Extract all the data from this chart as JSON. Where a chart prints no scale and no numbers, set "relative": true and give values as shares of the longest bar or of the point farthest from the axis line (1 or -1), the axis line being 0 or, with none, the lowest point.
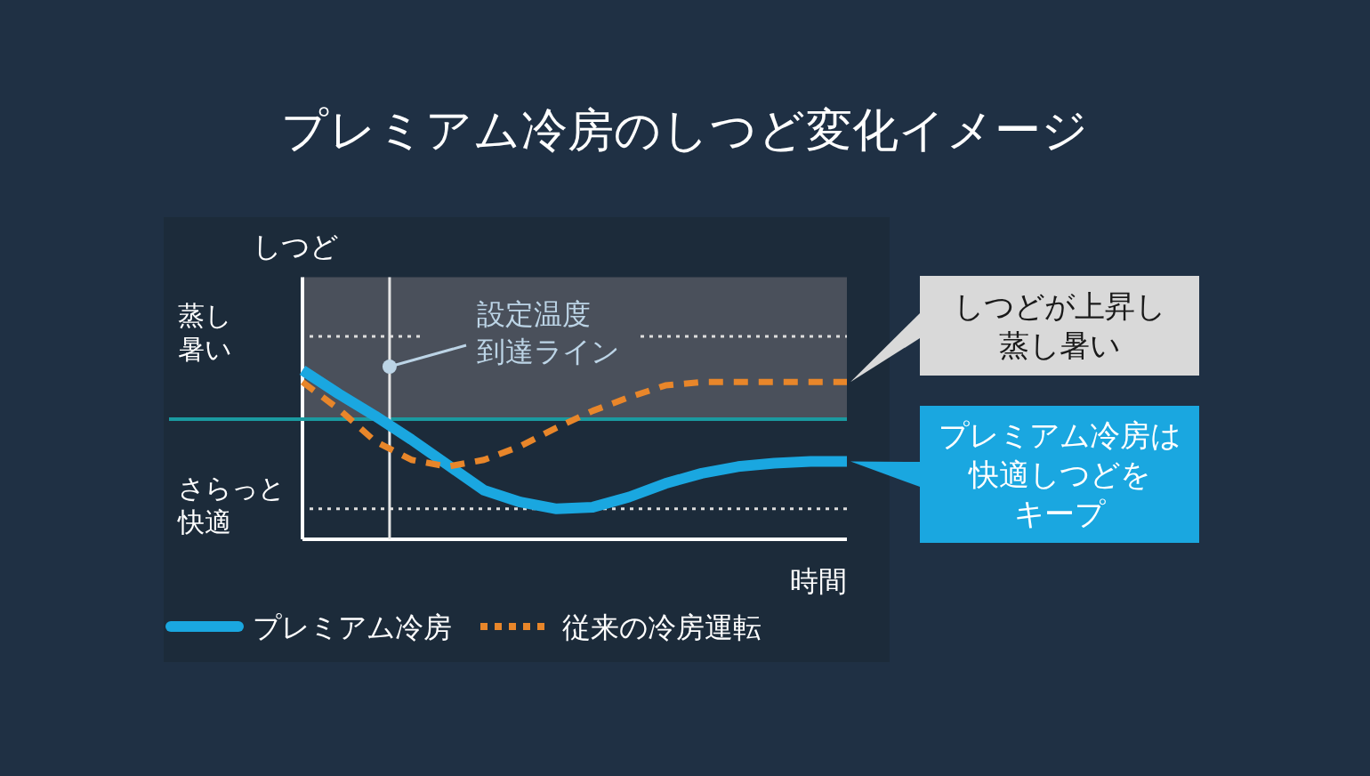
{
  "chart_data": {
    "type": "line",
    "title": "プレミアム冷房のしつど変化イメージ",
    "xlabel": "時間",
    "ylabel": "しつど",
    "relative": true,
    "categories": [
      null,
      null,
      null,
      null,
      null,
      null,
      null,
      null,
      null,
      null,
      null,
      null,
      null,
      null,
      null,
      null
    ],
    "legend": "bottom left",
    "series": [
      {
        "name": "プレミアム冷房",
        "color": "#1aa7e0",
        "line_style": "solid",
        "values": [
          1.0,
          0.86,
          0.73,
          0.59,
          0.44,
          0.29,
          0.22,
          0.18,
          0.19,
          0.25,
          0.33,
          0.39,
          0.43,
          0.45,
          0.46,
          0.46
        ]
      },
      {
        "name": "従来の冷房運転",
        "color": "#e8862a",
        "line_style": "dashed",
        "values": [
          0.93,
          0.77,
          0.58,
          0.47,
          0.43,
          0.47,
          0.55,
          0.66,
          0.76,
          0.84,
          0.91,
          0.93,
          0.93,
          0.93,
          0.93,
          0.93
        ]
      }
    ],
    "ref_lines": [
      {
        "axis": "y",
        "value": 0.71,
        "color": "#1a9aa0",
        "line_style": "solid"
      },
      {
        "axis": "y",
        "value": 1.2,
        "label": "蒸し暑い",
        "color": "#dddddd",
        "line_style": "dotted"
      },
      {
        "axis": "y",
        "value": 0.18,
        "label": "さらっと快適",
        "color": "#dddddd",
        "line_style": "dotted"
      }
    ],
    "bands": [
      {
        "axis": "y",
        "from": 0.71,
        "to": 1.55,
        "color": "#4a505b"
      }
    ],
    "annotations": [
      "設定温度到達ライン",
      "しつどが上昇し蒸し暑い",
      "プレミアム冷房は快適しつどをキープ"
    ]
  }
}
